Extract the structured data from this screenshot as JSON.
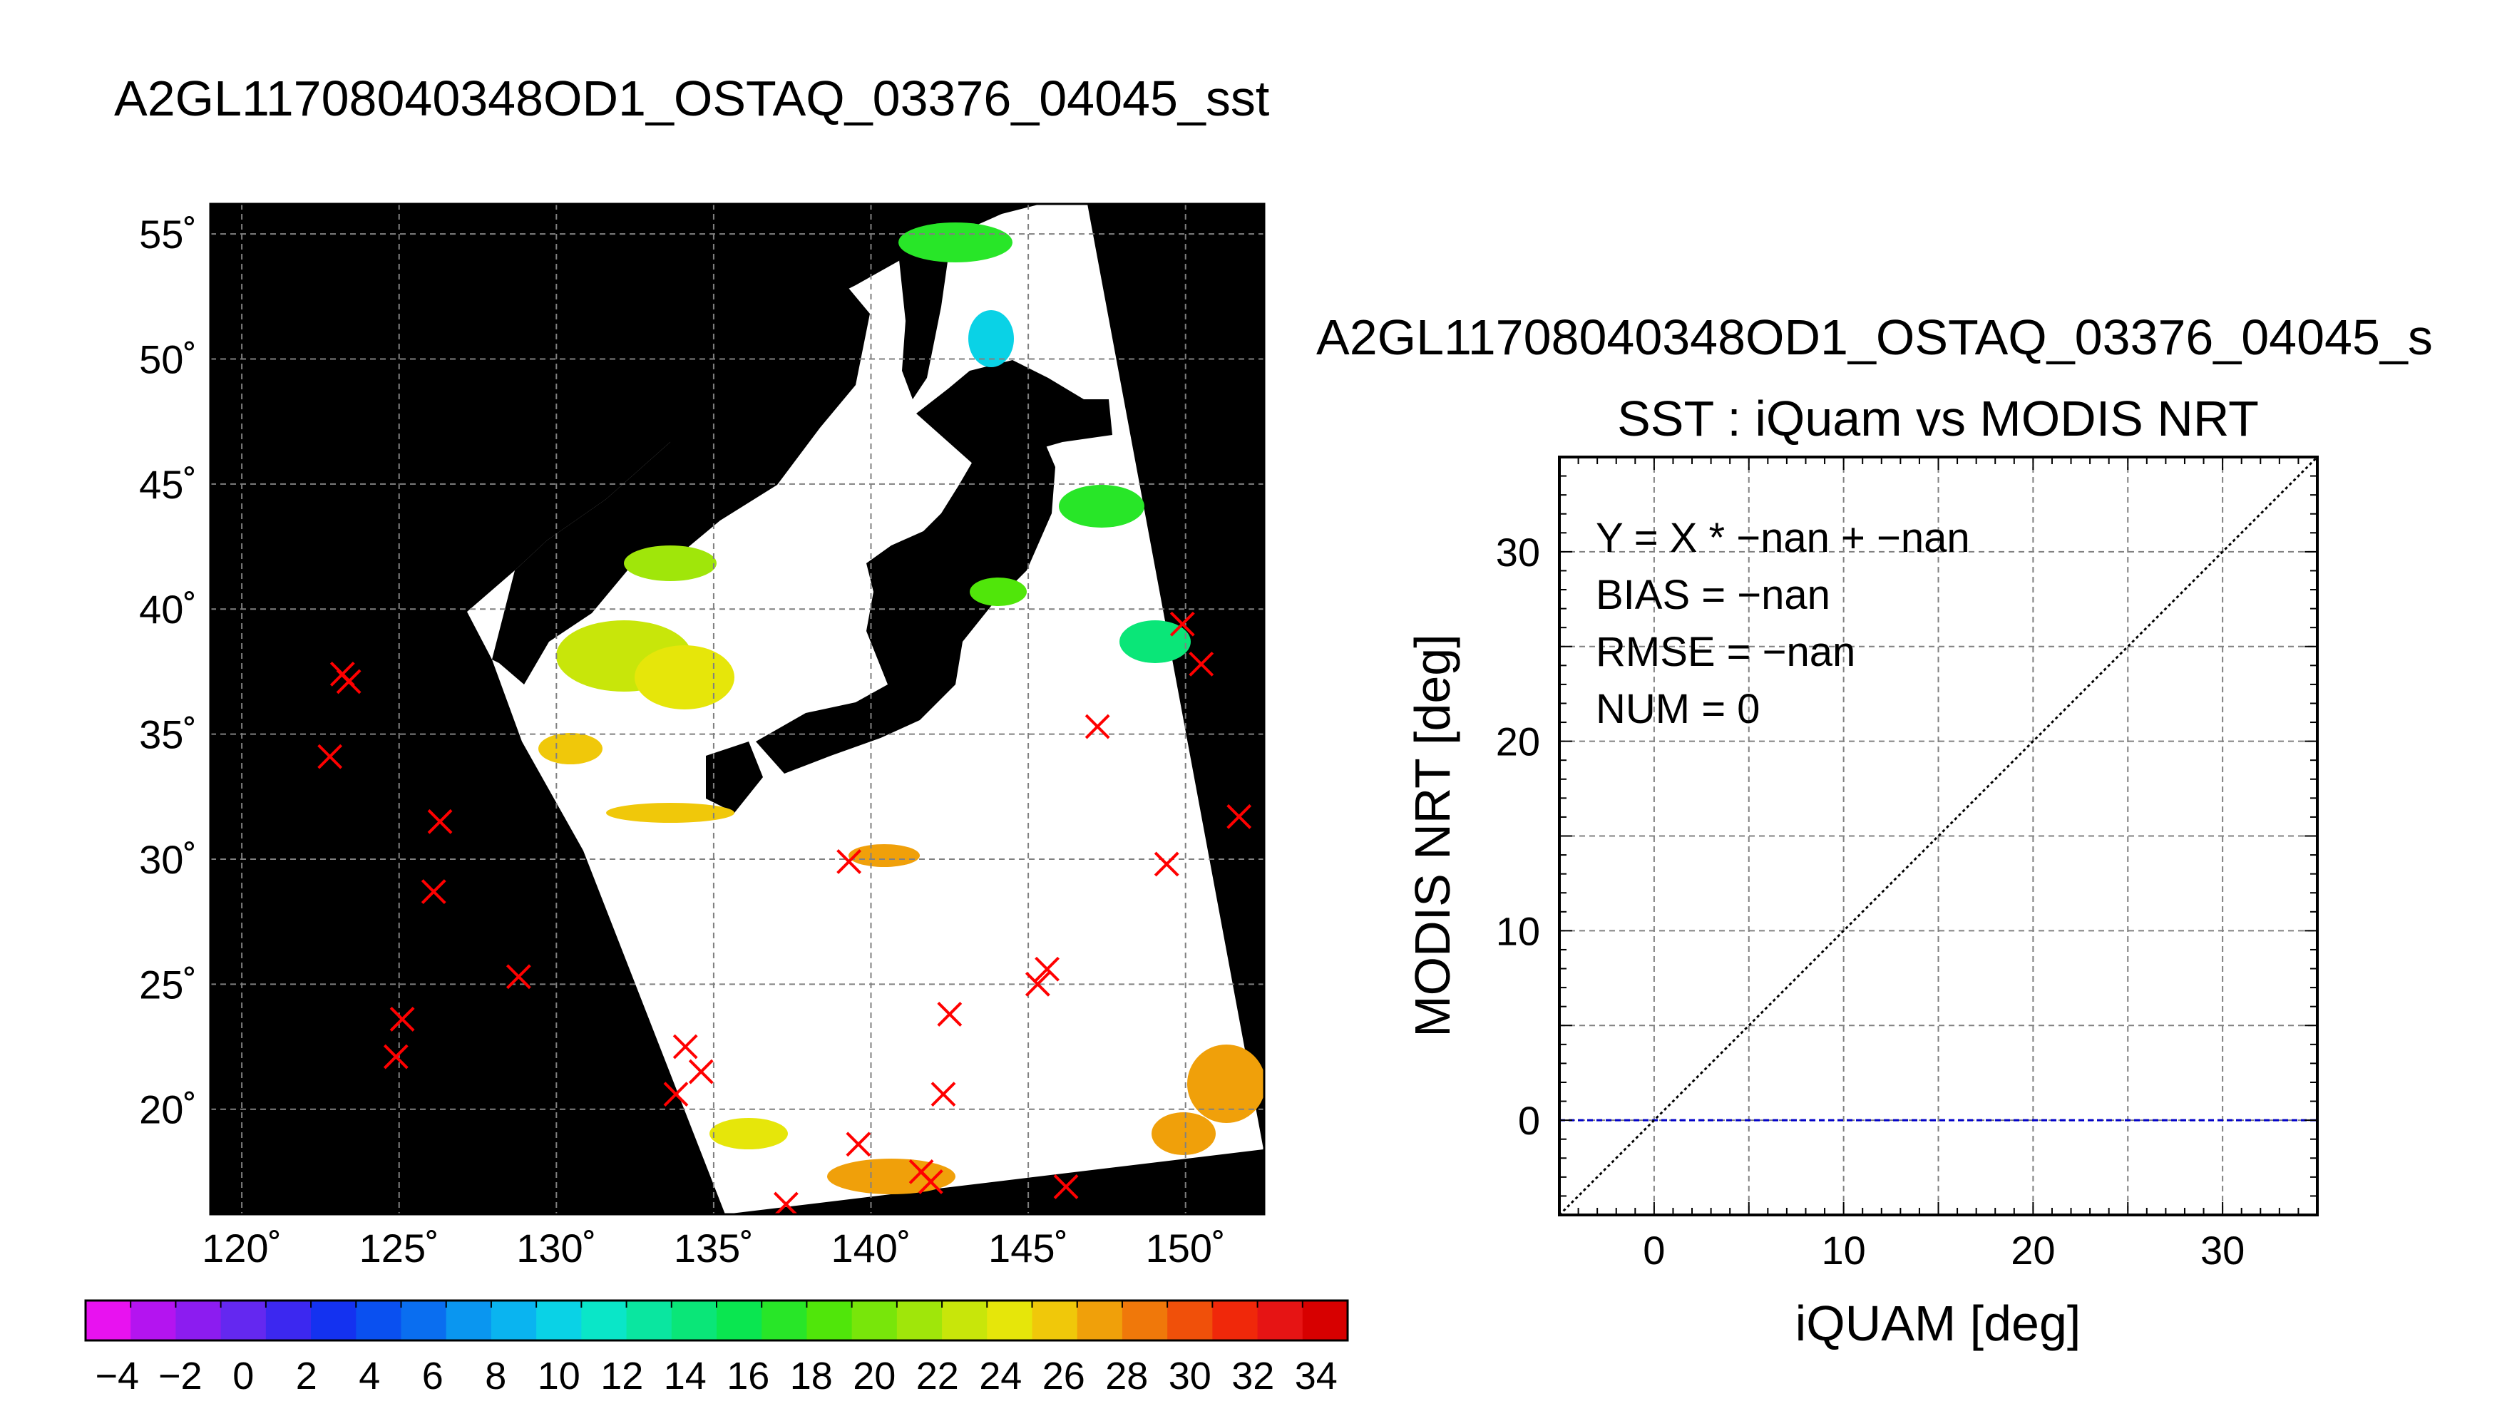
{
  "titles": {
    "main": "A2GL11708040348OD1_OSTAQ_03376_04045_sst",
    "right": "A2GL11708040348OD1_OSTAQ_03376_04045_s"
  },
  "map": {
    "lat_ticks": [
      "55˚",
      "50˚",
      "45˚",
      "40˚",
      "35˚",
      "30˚",
      "25˚",
      "20˚"
    ],
    "lon_ticks": [
      "120˚",
      "125˚",
      "130˚",
      "135˚",
      "140˚",
      "145˚",
      "150˚"
    ],
    "lat_range": [
      15.8,
      56.2
    ],
    "lon_range": [
      119.0,
      152.5
    ],
    "colors": {
      "land": "#000000",
      "no_data": "#ffffff",
      "matchup_marker": "#ff0000",
      "grid": "#808080"
    },
    "icon": "x-marker"
  },
  "colorbar": {
    "labels": [
      "−4",
      "−2",
      "0",
      "2",
      "4",
      "6",
      "8",
      "10",
      "12",
      "14",
      "16",
      "18",
      "20",
      "22",
      "24",
      "26",
      "28",
      "30",
      "32",
      "34"
    ],
    "range": [
      -5,
      35
    ],
    "colors": [
      "#e812f0",
      "#b414f0",
      "#8c1cf0",
      "#6428f0",
      "#3c28f0",
      "#1432f0",
      "#0a50f0",
      "#0a6ef0",
      "#0a96f0",
      "#0ab4f0",
      "#0ad2e6",
      "#0ae6c8",
      "#0ae6a0",
      "#0ae678",
      "#0ae650",
      "#28e628",
      "#50e60a",
      "#78e60a",
      "#a0e60a",
      "#c8e60a",
      "#e6e60a",
      "#f0c80a",
      "#f0a00a",
      "#f0780a",
      "#f0500a",
      "#f0280a",
      "#e61414",
      "#d70000"
    ]
  },
  "scatter": {
    "subtitle": "SST : iQuam vs MODIS NRT",
    "stats": [
      "Y = X * −nan + −nan",
      "BIAS = −nan",
      "RMSE = −nan",
      "NUM = 0"
    ],
    "colors": {
      "one_to_one": "#000000",
      "zero_line": "#0000c8",
      "grid": "#808080"
    }
  },
  "chart_data": [
    {
      "type": "scatter",
      "title": "A2GL11708040348OD1_OSTAQ_03376_04045_sst",
      "subtitle": "",
      "xlabel": "",
      "ylabel": "",
      "xlim": [
        119.0,
        152.5
      ],
      "ylim": [
        15.8,
        56.2
      ],
      "x_ticks": [
        120,
        125,
        130,
        135,
        140,
        145,
        150
      ],
      "y_ticks": [
        20,
        25,
        30,
        35,
        40,
        45,
        50,
        55
      ],
      "grid": true,
      "colorbar": {
        "min": -5,
        "max": 35,
        "ticks": [
          -4,
          -2,
          0,
          2,
          4,
          6,
          8,
          10,
          12,
          14,
          16,
          18,
          20,
          22,
          24,
          26,
          28,
          30,
          32,
          34
        ]
      },
      "series": [
        {
          "marker": "x",
          "x": [
            123.2,
            123.4,
            122.8,
            126.3,
            126.1,
            128.8,
            125.1,
            124.9,
            134.1,
            134.6,
            133.8,
            137.3,
            139.3,
            139.6,
            141.6,
            141.9,
            142.3,
            142.5,
            145.3,
            145.6,
            146.2,
            147.2,
            149.4,
            149.9,
            150.5,
            151.7
          ],
          "y": [
            37.4,
            37.1,
            34.1,
            31.5,
            28.7,
            25.3,
            23.6,
            22.1,
            22.5,
            21.5,
            20.6,
            16.2,
            29.9,
            18.6,
            17.5,
            17.1,
            20.6,
            23.8,
            25.0,
            25.6,
            16.9,
            35.3,
            29.8,
            39.4,
            37.8,
            31.7
          ]
        }
      ]
    },
    {
      "type": "scatter",
      "title": "A2GL11708040348OD1_OSTAQ_03376_04045_s",
      "subtitle": "SST : iQuam vs MODIS NRT",
      "xlabel": "iQUAM [deg]",
      "ylabel": "MODIS NRT [deg]",
      "xlim": [
        -5,
        35
      ],
      "ylim": [
        -5,
        35
      ],
      "x_ticks": [
        0,
        10,
        20,
        30
      ],
      "y_ticks": [
        0,
        10,
        20,
        30
      ],
      "grid": true,
      "annotations": [
        "Y = X * −nan + −nan",
        "BIAS = −nan",
        "RMSE = −nan",
        "NUM = 0"
      ],
      "series": [
        {
          "x": [],
          "y": []
        }
      ],
      "reference_lines": [
        {
          "kind": "1:1",
          "x": [
            -5,
            35
          ],
          "y": [
            -5,
            35
          ],
          "style": "dotted",
          "color": "#000000"
        },
        {
          "kind": "y=0",
          "x": [
            -5,
            35
          ],
          "y": [
            0,
            0
          ],
          "style": "dashed",
          "color": "#0000c8"
        }
      ]
    }
  ]
}
